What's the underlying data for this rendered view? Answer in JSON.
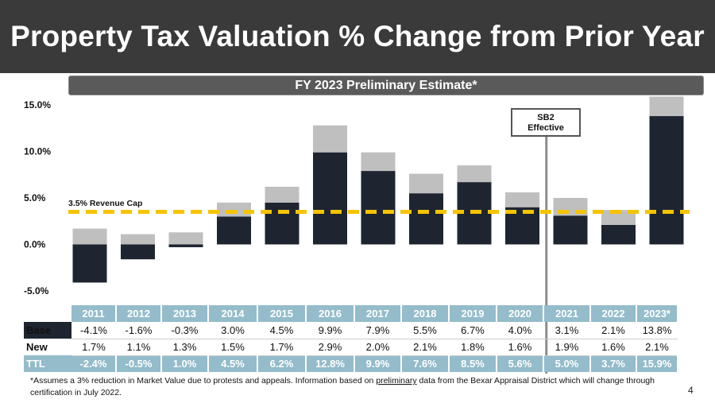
{
  "title": "Property Tax Valuation % Change from Prior Year",
  "subtitle": "FY 2023 Preliminary Estimate*",
  "annotation": {
    "line1": "SB2",
    "line2": "Effective"
  },
  "revenue_cap_label": "3.5% Revenue Cap",
  "colors": {
    "base": "#1e2531",
    "new": "#bfbfbf",
    "cap": "#f5c400",
    "table_header": "#94bccb",
    "title_bg": "#3a3a3a"
  },
  "table": {
    "row_labels": {
      "base": "Base",
      "new": "New",
      "ttl": "TTL"
    },
    "years": [
      "2011",
      "2012",
      "2013",
      "2014",
      "2015",
      "2016",
      "2017",
      "2018",
      "2019",
      "2020",
      "2021",
      "2022",
      "2023*"
    ],
    "base": [
      "-4.1%",
      "-1.6%",
      "-0.3%",
      "3.0%",
      "4.5%",
      "9.9%",
      "7.9%",
      "5.5%",
      "6.7%",
      "4.0%",
      "3.1%",
      "2.1%",
      "13.8%"
    ],
    "new": [
      "1.7%",
      "1.1%",
      "1.3%",
      "1.5%",
      "1.7%",
      "2.9%",
      "2.0%",
      "2.1%",
      "1.8%",
      "1.6%",
      "1.9%",
      "1.6%",
      "2.1%"
    ],
    "ttl": [
      "-2.4%",
      "-0.5%",
      "1.0%",
      "4.5%",
      "6.2%",
      "12.8%",
      "9.9%",
      "7.6%",
      "8.5%",
      "5.6%",
      "5.0%",
      "3.7%",
      "15.9%"
    ]
  },
  "footnote": {
    "part1": "*Assumes a 3% reduction in Market Value due to protests and appeals. Information based on ",
    "underlined": "preliminary",
    "part2": " data from the Bexar Appraisal District which will change through certification in July 2022."
  },
  "page_number": "4",
  "chart_data": {
    "type": "bar",
    "stacked": true,
    "categories": [
      "2011",
      "2012",
      "2013",
      "2014",
      "2015",
      "2016",
      "2017",
      "2018",
      "2019",
      "2020",
      "2021",
      "2022",
      "2023*"
    ],
    "series": [
      {
        "name": "Base",
        "values": [
          -4.1,
          -1.6,
          -0.3,
          3.0,
          4.5,
          9.9,
          7.9,
          5.5,
          6.7,
          4.0,
          3.1,
          2.1,
          13.8
        ]
      },
      {
        "name": "New",
        "values": [
          1.7,
          1.1,
          1.3,
          1.5,
          1.7,
          2.9,
          2.0,
          2.1,
          1.8,
          1.6,
          1.9,
          1.6,
          2.1
        ]
      }
    ],
    "ylim": [
      -5.0,
      15.0
    ],
    "yticks": [
      "15.0%",
      "10.0%",
      "5.0%",
      "0.0%",
      "-5.0%"
    ],
    "ytick_values": [
      15,
      10,
      5,
      0,
      -5
    ],
    "reference_line": {
      "value": 3.5,
      "style": "dashed"
    },
    "vertical_marker_between": [
      "2020",
      "2021"
    ],
    "grid": false
  }
}
